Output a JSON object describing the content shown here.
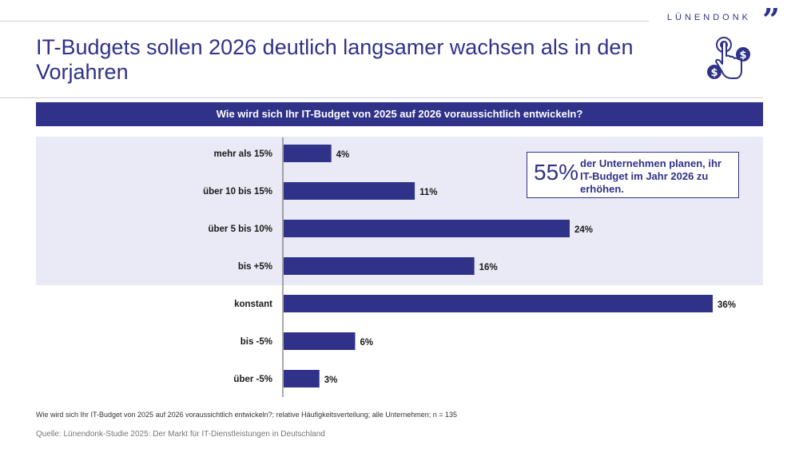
{
  "brand": {
    "name": "LÜNENDONK",
    "mark": "”"
  },
  "title": "IT-Budgets sollen 2026 deutlich langsamer wachsen als in den Vorjahren",
  "chart_data": {
    "type": "bar",
    "orientation": "horizontal",
    "title": "Wie wird sich Ihr IT-Budget von 2025 auf 2026 voraussichtlich entwickeln?",
    "categories": [
      "mehr als 15%",
      "über 10 bis 15%",
      "über 5 bis 10%",
      "bis +5%",
      "konstant",
      "bis -5%",
      "über -5%"
    ],
    "values": [
      4,
      11,
      24,
      16,
      36,
      6,
      3
    ],
    "value_labels": [
      "4%",
      "11%",
      "24%",
      "16%",
      "36%",
      "6%",
      "3%"
    ],
    "unit": "%",
    "xlim": [
      0,
      36
    ],
    "highlighted_categories": [
      "mehr als 15%",
      "über 10 bis 15%",
      "über 5 bis 10%",
      "bis +5%"
    ],
    "bar_color": "#2f3288",
    "highlight_color": "#e9eaf5"
  },
  "callout": {
    "percent": "55%",
    "text": "der Unternehmen planen, ihr IT-Budget im Jahr 2026 zu erhöhen."
  },
  "footnote": "Wie wird sich Ihr IT-Budget von 2025 auf 2026 voraussichtlich entwickeln?; relative Häufigkeitsverteilung; alle Unternehmen; n = 135",
  "source": "Quelle: Lünendonk-Studie 2025: Der Markt für IT-Dienstleistungen in Deutschland"
}
